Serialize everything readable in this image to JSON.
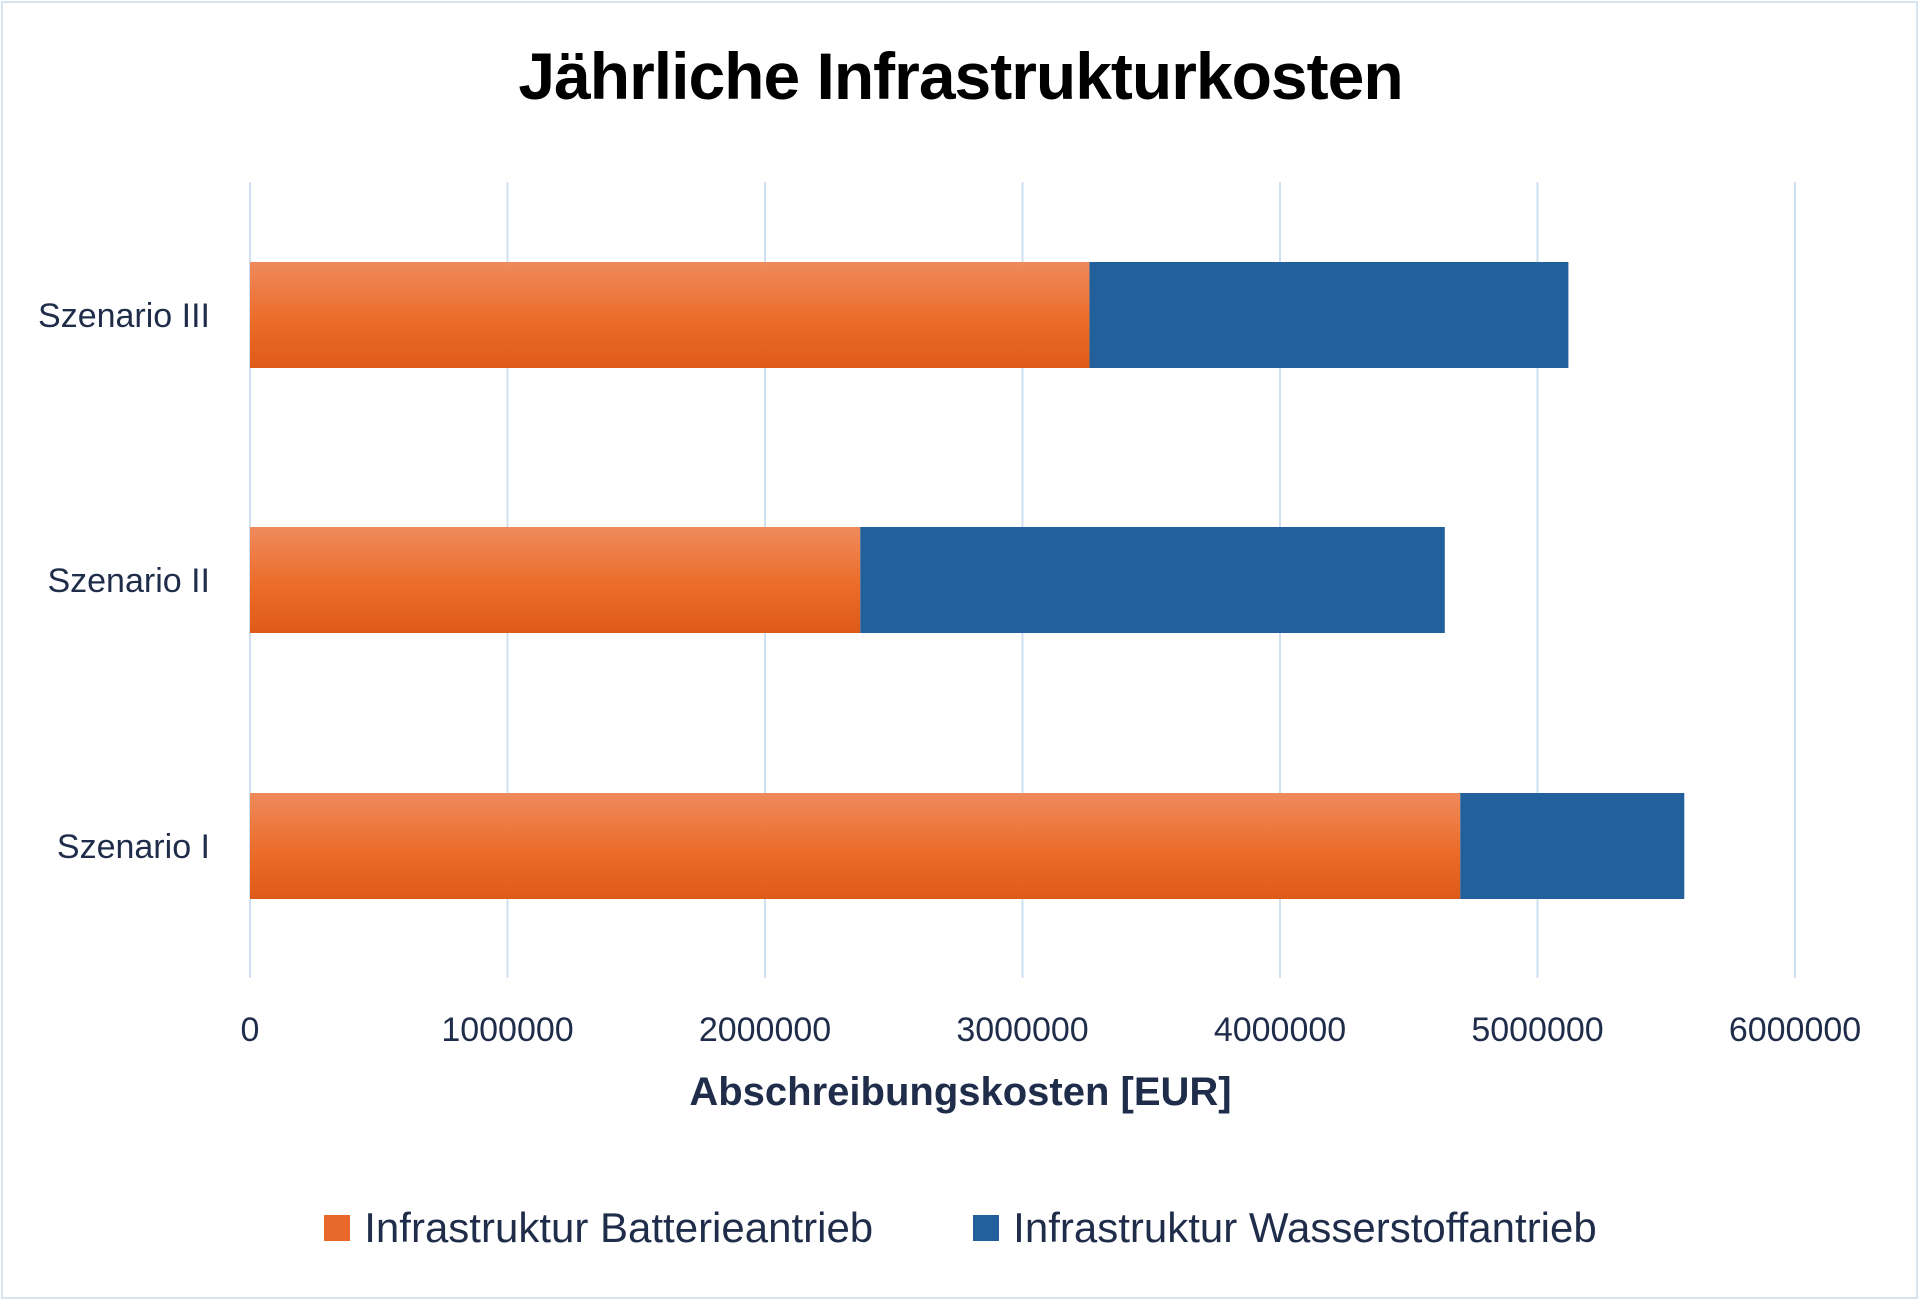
{
  "chart_data": {
    "type": "bar",
    "orientation": "horizontal",
    "stacked": true,
    "title": "Jährliche Infrastrukturkosten",
    "xlabel": "Abschreibungskosten [EUR]",
    "ylabel": "",
    "categories": [
      "Szenario III",
      "Szenario II",
      "Szenario I"
    ],
    "series": [
      {
        "name": "Infrastruktur Batterieantrieb",
        "color": "#e8672a",
        "values": [
          3260000,
          2370000,
          4700000
        ]
      },
      {
        "name": "Infrastruktur Wasserstoffantrieb",
        "color": "#22609b",
        "values": [
          1860000,
          2270000,
          870000
        ]
      }
    ],
    "xlim": [
      0,
      6000000
    ],
    "xticks": [
      "0",
      "1000000",
      "2000000",
      "3000000",
      "4000000",
      "5000000",
      "6000000"
    ],
    "grid": true,
    "legend_position": "bottom"
  }
}
